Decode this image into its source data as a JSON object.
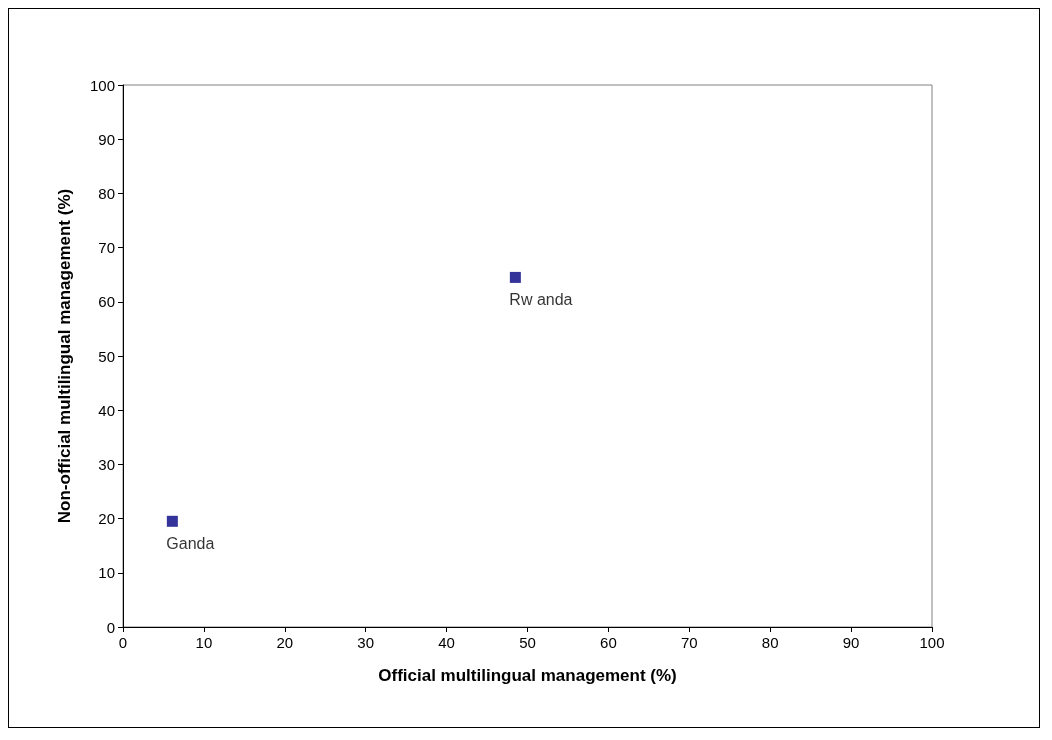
{
  "chart_data": {
    "type": "scatter",
    "xlabel": "Official multilingual management (%)",
    "ylabel": "Non-official multilingual management (%)",
    "x": [
      6.1,
      48.5
    ],
    "values": [
      19.5,
      64.5
    ],
    "color": "#000080",
    "marker": "square",
    "xlim": [
      0,
      100
    ],
    "xticks": [
      0,
      10,
      20,
      30,
      40,
      50,
      60,
      70,
      80,
      90,
      100
    ],
    "ylim": [
      0,
      100
    ],
    "yticks": [
      0,
      10,
      20,
      30,
      40,
      50,
      60,
      70,
      80,
      90,
      100
    ],
    "grid": false,
    "annotations": [
      {
        "text": "Ganda",
        "x": 6.1,
        "y": 19.5
      },
      {
        "text": "Rw anda",
        "x": 48.5,
        "y": 64.5
      }
    ]
  }
}
